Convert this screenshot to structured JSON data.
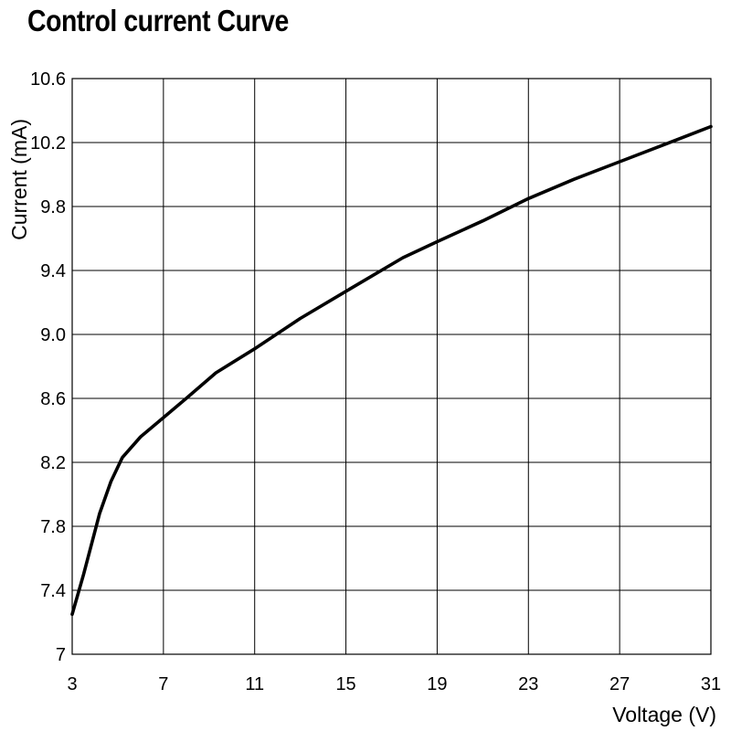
{
  "chart_data": {
    "type": "line",
    "title": "Control current Curve",
    "xlabel": "Voltage (V)",
    "ylabel": "Current (mA)",
    "xlim": [
      3,
      31
    ],
    "ylim": [
      7.0,
      10.6
    ],
    "x_ticks": [
      "3",
      "7",
      "11",
      "15",
      "19",
      "23",
      "27",
      "31"
    ],
    "y_ticks": [
      "7",
      "7.4",
      "7.8",
      "8.2",
      "8.6",
      "9.0",
      "9.4",
      "9.8",
      "10.2",
      "10.6"
    ],
    "x_tick_values": [
      3,
      7,
      11,
      15,
      19,
      23,
      27,
      31
    ],
    "y_tick_values": [
      7.0,
      7.4,
      7.8,
      8.2,
      8.6,
      9.0,
      9.4,
      9.8,
      10.2,
      10.6
    ],
    "grid": true,
    "series": [
      {
        "x": [
          3,
          3.5,
          4.2,
          4.7,
          5.2,
          6.0,
          7.0,
          8.0,
          9.3,
          11.0,
          13.0,
          15.0,
          17.5,
          19.0,
          21.0,
          23.0,
          25.0,
          27.0,
          29.0,
          31.0
        ],
        "y": [
          7.25,
          7.5,
          7.88,
          8.08,
          8.23,
          8.36,
          8.48,
          8.6,
          8.76,
          8.91,
          9.1,
          9.27,
          9.48,
          9.58,
          9.71,
          9.85,
          9.97,
          10.08,
          10.19,
          10.3
        ]
      }
    ],
    "colors": {
      "line": "#000000",
      "grid": "#000000",
      "background": "#ffffff"
    }
  }
}
